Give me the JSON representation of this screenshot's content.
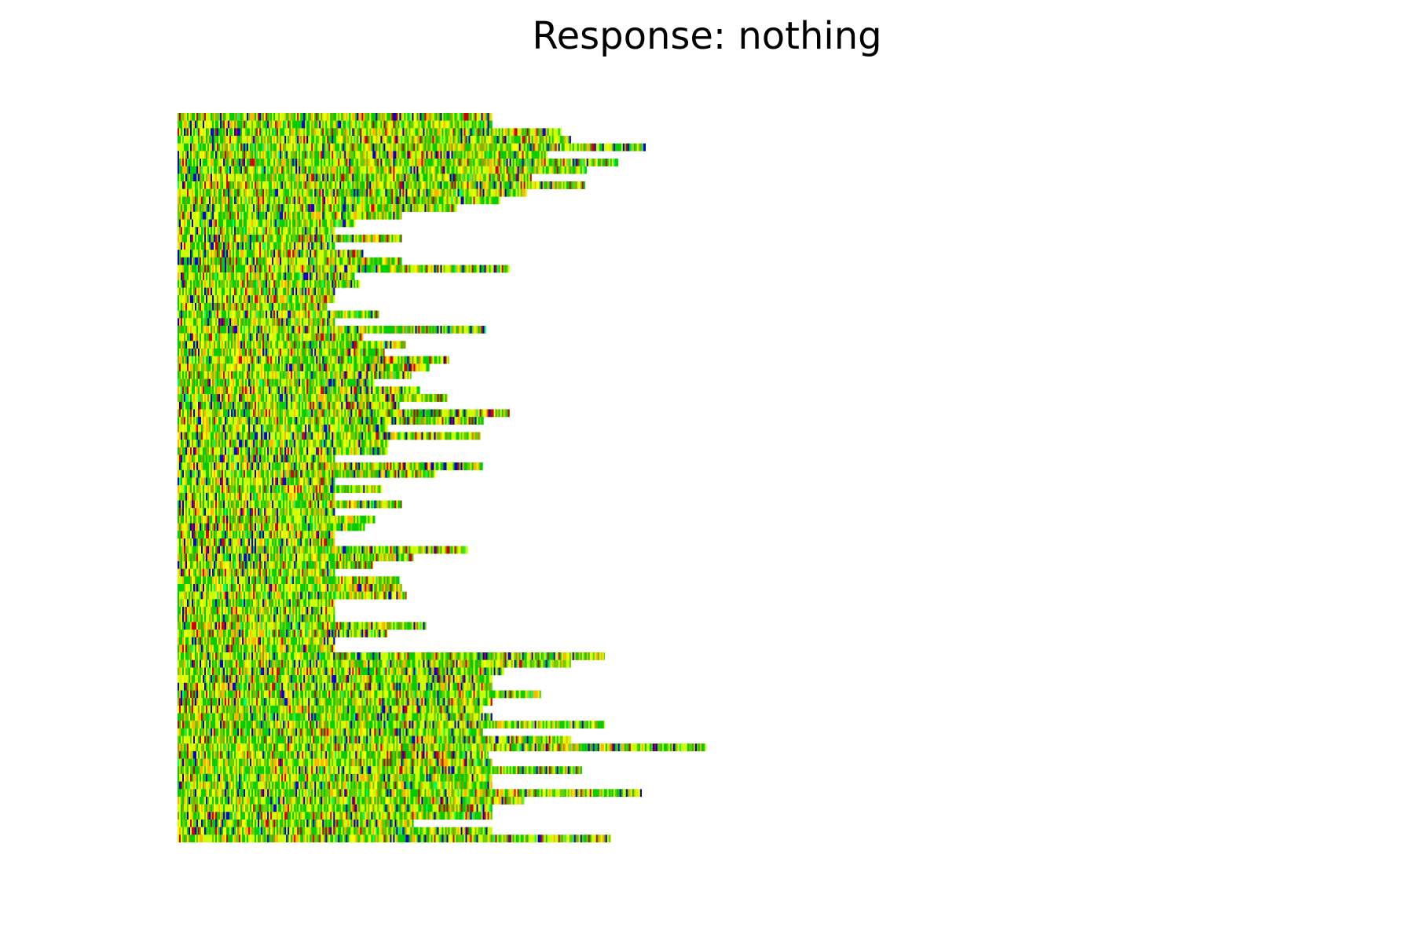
{
  "chart_data": {
    "type": "heatmap",
    "title": "Response: nothing",
    "xlabel": "",
    "ylabel": "",
    "axes_visible": false,
    "grid": false,
    "legend": "none",
    "palette": {
      "A": "#00cc00",
      "C": "#0000cc",
      "G": "#ffb300",
      "T": "#cc0000",
      "N": "#ccff00",
      "Y": "#ffff00",
      "R": "#66cc00",
      "M": "#999900",
      "K": "#00ff66"
    },
    "palette_weights": {
      "A": 0.26,
      "N": 0.24,
      "R": 0.13,
      "G": 0.12,
      "Y": 0.07,
      "C": 0.07,
      "T": 0.06,
      "M": 0.03,
      "K": 0.02
    },
    "xlim": [
      0,
      1400
    ],
    "n_sequences": 96,
    "sequence_lengths": [
      400,
      400,
      488,
      500,
      595,
      470,
      560,
      520,
      450,
      518,
      444,
      410,
      355,
      285,
      226,
      200,
      285,
      200,
      236,
      285,
      422,
      225,
      232,
      200,
      200,
      190,
      256,
      200,
      392,
      236,
      290,
      263,
      345,
      320,
      297,
      250,
      308,
      343,
      282,
      422,
      389,
      267,
      385,
      268,
      267,
      200,
      388,
      328,
      200,
      260,
      200,
      285,
      200,
      251,
      238,
      200,
      200,
      369,
      300,
      249,
      200,
      282,
      285,
      291,
      200,
      200,
      200,
      316,
      267,
      200,
      200,
      543,
      500,
      415,
      400,
      400,
      462,
      400,
      388,
      400,
      543,
      388,
      500,
      672,
      395,
      400,
      514,
      400,
      400,
      590,
      441,
      400,
      400,
      300,
      400,
      551
    ]
  }
}
